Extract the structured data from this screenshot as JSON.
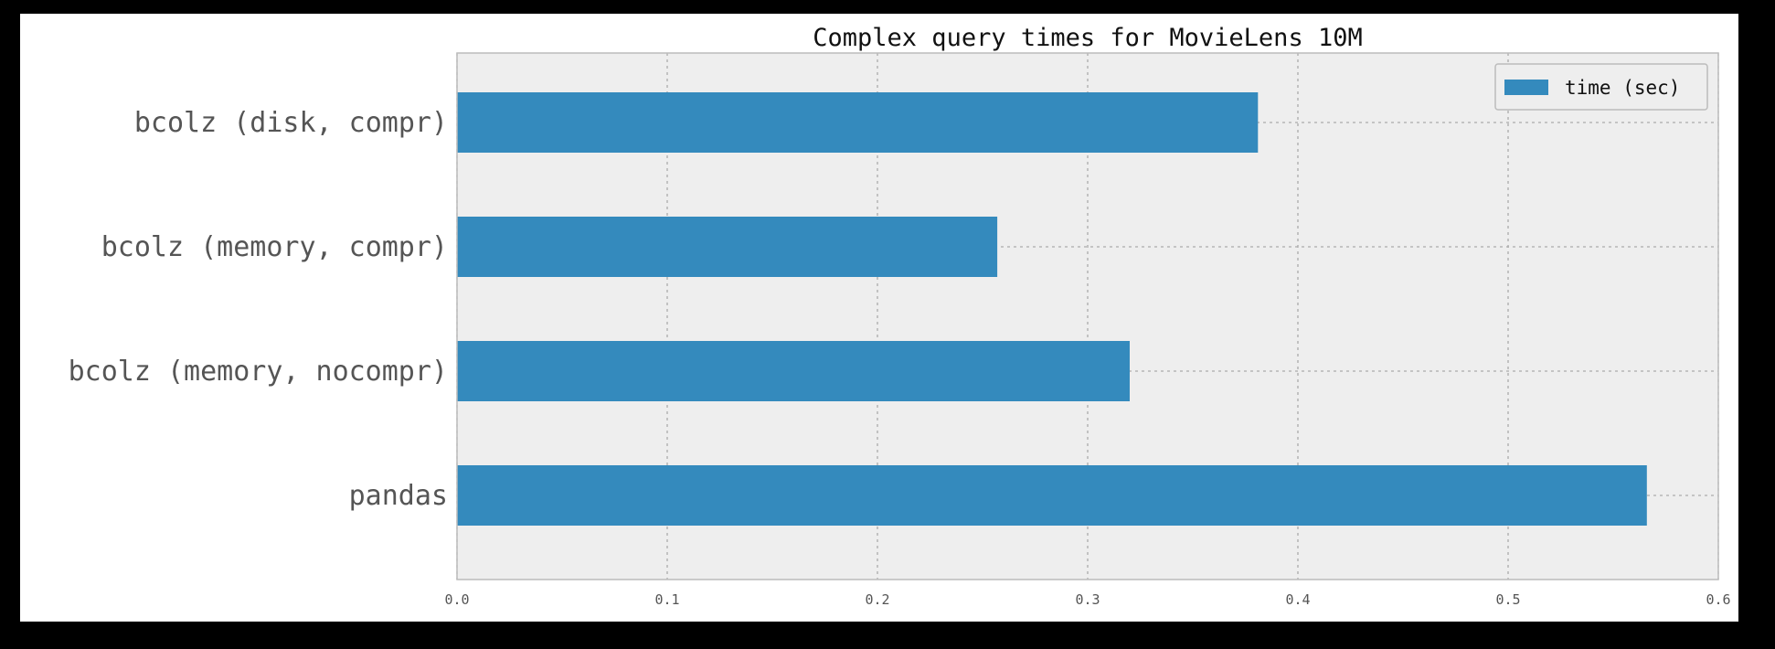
{
  "chart_data": {
    "type": "bar",
    "orientation": "horizontal",
    "title": "Complex query times for MovieLens 10M",
    "xlabel": "",
    "ylabel": "",
    "categories": [
      "bcolz (disk, compr)",
      "bcolz (memory, compr)",
      "bcolz (memory, nocompr)",
      "pandas"
    ],
    "series": [
      {
        "name": "time (sec)",
        "values": [
          0.381,
          0.257,
          0.32,
          0.566
        ],
        "color": "#348abd"
      }
    ],
    "xlim": [
      0.0,
      0.6
    ],
    "xticks": [
      "0.0",
      "0.1",
      "0.2",
      "0.3",
      "0.4",
      "0.5",
      "0.6"
    ],
    "grid": true,
    "legend": "top-right",
    "colors": {
      "plot_background": "#eeeeee",
      "grid": "#aaaaaa",
      "axes_edge": "#bcbcbc"
    }
  }
}
